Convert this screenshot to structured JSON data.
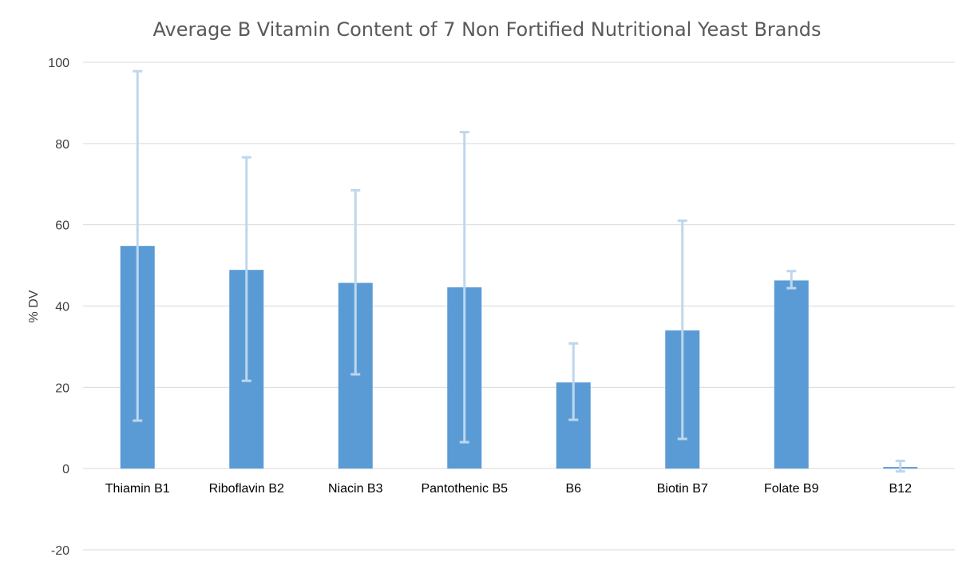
{
  "chart_data": {
    "type": "bar",
    "title": "Average B Vitamin Content of 7 Non Fortified Nutritional Yeast Brands",
    "xlabel": "",
    "ylabel": "% DV",
    "ylim": [
      -20,
      100
    ],
    "yticks": [
      100,
      80,
      60,
      40,
      20,
      0,
      -20
    ],
    "grid": true,
    "legend": "none",
    "categories": [
      "Thiamin B1",
      "Riboflavin B2",
      "Niacin B3",
      "Pantothenic B5",
      "B6",
      "Biotin B7",
      "Folate B9",
      "B12"
    ],
    "values": [
      54.8,
      48.9,
      45.7,
      44.6,
      21.2,
      34.0,
      46.3,
      0.4
    ],
    "error_low": [
      11.8,
      21.6,
      23.2,
      6.5,
      12.0,
      7.3,
      44.4,
      -0.7
    ],
    "error_high": [
      97.8,
      76.6,
      68.5,
      82.8,
      30.8,
      61.0,
      48.6,
      1.9
    ],
    "colors": {
      "bar": "#5b9bd5",
      "error_bar": "#bdd7ee",
      "grid": "#d9d9d9"
    }
  }
}
